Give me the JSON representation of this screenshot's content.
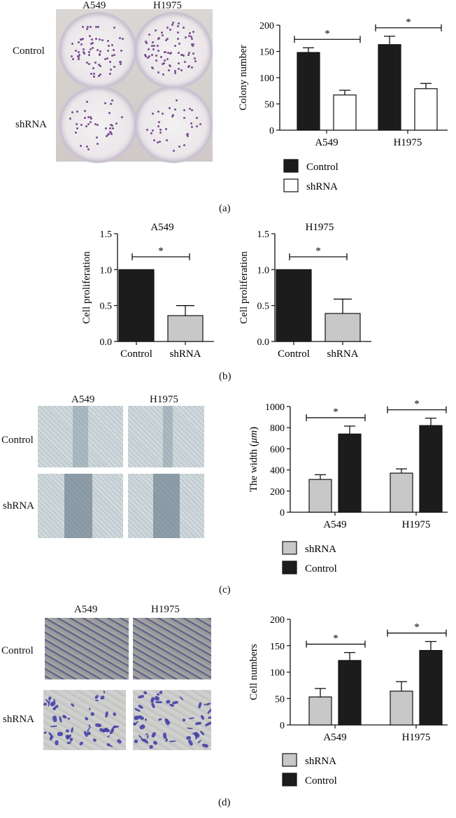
{
  "panels": {
    "a": {
      "caption": "(a)",
      "photo_col_labels": [
        "A549",
        "H1975"
      ],
      "photo_row_labels": [
        "Control",
        "shRNA"
      ],
      "chart": {
        "type": "bar",
        "categories": [
          "A549",
          "H1975"
        ],
        "series": [
          {
            "name": "Control",
            "values": [
              148,
              163
            ],
            "errors": [
              9,
              16
            ],
            "color": "#1c1c1c"
          },
          {
            "name": "shRNA",
            "values": [
              67,
              79
            ],
            "errors": [
              9,
              10
            ],
            "color": "#ffffff"
          }
        ],
        "ylabel": "Colony number",
        "ylim": [
          0,
          200
        ],
        "yticks": [
          "0",
          "50",
          "100",
          "150",
          "200"
        ],
        "significance": [
          "*",
          "*"
        ],
        "legend": [
          {
            "label": "Control",
            "color": "#1c1c1c"
          },
          {
            "label": "shRNA",
            "color": "#ffffff"
          }
        ]
      }
    },
    "b": {
      "caption": "(b)",
      "charts": [
        {
          "type": "bar",
          "title": "A549",
          "categories": [
            "Control",
            "shRNA"
          ],
          "values": [
            1.0,
            0.36
          ],
          "errors": [
            0,
            0.14
          ],
          "colors": [
            "#1c1c1c",
            "#c8c8c8"
          ],
          "ylabel": "Cell proliferation",
          "ylim": [
            0,
            1.5
          ],
          "yticks": [
            "0.0",
            "0.5",
            "1.0",
            "1.5"
          ],
          "significance": "*"
        },
        {
          "type": "bar",
          "title": "H1975",
          "categories": [
            "Control",
            "shRNA"
          ],
          "values": [
            1.0,
            0.39
          ],
          "errors": [
            0,
            0.2
          ],
          "colors": [
            "#1c1c1c",
            "#c8c8c8"
          ],
          "ylabel": "Cell proliferation",
          "ylim": [
            0,
            1.5
          ],
          "yticks": [
            "0.0",
            "0.5",
            "1.0",
            "1.5"
          ],
          "significance": "*"
        }
      ]
    },
    "c": {
      "caption": "(c)",
      "photo_col_labels": [
        "A549",
        "H1975"
      ],
      "photo_row_labels": [
        "Control",
        "shRNA"
      ],
      "chart": {
        "type": "bar",
        "categories": [
          "A549",
          "H1975"
        ],
        "series": [
          {
            "name": "shRNA",
            "values": [
              310,
              370
            ],
            "errors": [
              45,
              40
            ],
            "color": "#c8c8c8"
          },
          {
            "name": "Control",
            "values": [
              740,
              820
            ],
            "errors": [
              75,
              70
            ],
            "color": "#1c1c1c"
          }
        ],
        "ylabel_prefix": "The width (",
        "ylabel_unit": "μm",
        "ylabel_suffix": ")",
        "ylim": [
          0,
          1000
        ],
        "yticks": [
          "0",
          "200",
          "400",
          "600",
          "800",
          "1000"
        ],
        "significance": [
          "*",
          "*"
        ],
        "legend": [
          {
            "label": "shRNA",
            "color": "#c8c8c8"
          },
          {
            "label": "Control",
            "color": "#1c1c1c"
          }
        ]
      }
    },
    "d": {
      "caption": "(d)",
      "photo_col_labels": [
        "A549",
        "H1975"
      ],
      "photo_row_labels": [
        "Control",
        "shRNA"
      ],
      "chart": {
        "type": "bar",
        "categories": [
          "A549",
          "H1975"
        ],
        "series": [
          {
            "name": "shRNA",
            "values": [
              53,
              64
            ],
            "errors": [
              16,
              18
            ],
            "color": "#c8c8c8"
          },
          {
            "name": "Control",
            "values": [
              122,
              141
            ],
            "errors": [
              15,
              17
            ],
            "color": "#1c1c1c"
          }
        ],
        "ylabel": "Cell numbers",
        "ylim": [
          0,
          200
        ],
        "yticks": [
          "0",
          "50",
          "100",
          "150",
          "200"
        ],
        "significance": [
          "*",
          "*"
        ],
        "legend": [
          {
            "label": "shRNA",
            "color": "#c8c8c8"
          },
          {
            "label": "Control",
            "color": "#1c1c1c"
          }
        ]
      }
    }
  }
}
